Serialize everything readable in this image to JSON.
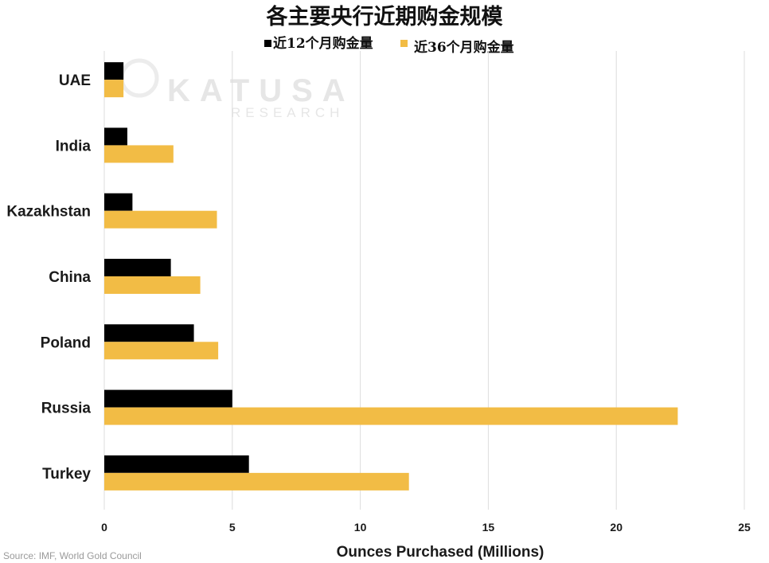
{
  "title": "各主要央行近期购金规模",
  "watermark": {
    "name": "KATUSA",
    "sub": "RESEARCH"
  },
  "source": "Source: IMF, World Gold Council",
  "colors": {
    "series_12": "#000000",
    "series_36": "#F2BC45",
    "grid": "#dcdcdc"
  },
  "chart_data": {
    "type": "bar",
    "orientation": "horizontal",
    "categories": [
      "UAE",
      "India",
      "Kazakhstan",
      "China",
      "Poland",
      "Russia",
      "Turkey"
    ],
    "series": [
      {
        "name": "近12个月购金量",
        "values": [
          0.75,
          0.9,
          1.1,
          2.6,
          3.5,
          5.0,
          5.65
        ]
      },
      {
        "name": "近36个月购金量",
        "values": [
          0.75,
          2.7,
          4.4,
          3.75,
          4.45,
          22.4,
          11.9
        ]
      }
    ],
    "xlabel": "Ounces Purchased (Millions)",
    "ylabel": "",
    "xlim": [
      0,
      25
    ],
    "xticks": [
      "0",
      "5",
      "10",
      "15",
      "20",
      "25"
    ],
    "grid": true,
    "legend_position": "top-center"
  }
}
